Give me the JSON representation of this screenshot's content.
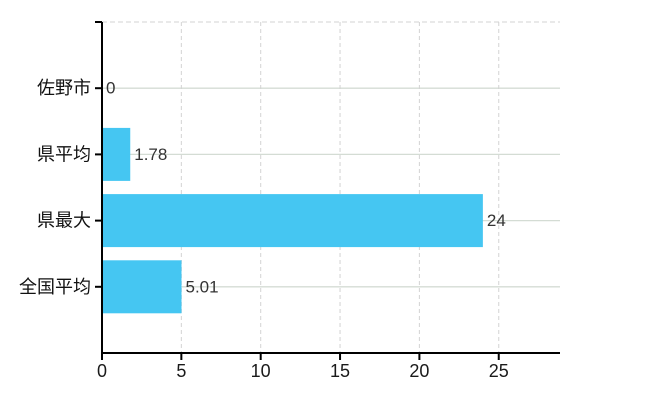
{
  "chart_data": {
    "type": "bar",
    "orientation": "horizontal",
    "title": "",
    "categories": [
      "佐野市",
      "県平均",
      "県最大",
      "全国平均"
    ],
    "values": [
      0,
      1.78,
      24,
      5.01
    ],
    "value_labels": [
      "0",
      "1.78",
      "24",
      "5.01"
    ],
    "x_ticks": [
      0,
      5,
      10,
      15,
      20,
      25
    ],
    "x_tick_labels": [
      "0",
      "5",
      "10",
      "15",
      "20",
      "25"
    ],
    "xlim": [
      0,
      28.86
    ],
    "grid": true,
    "legend": false,
    "colors": {
      "bar": "#45c6f2",
      "axis": "#000000",
      "grid_vertical": "#d3d3d3",
      "grid_horizontal": "#d4dcd4",
      "plot_top_border": "#d3d3d3",
      "category_label": "#111111",
      "tick_label": "#1a1a1a",
      "value_label": "#333333",
      "background": "#ffffff"
    }
  }
}
